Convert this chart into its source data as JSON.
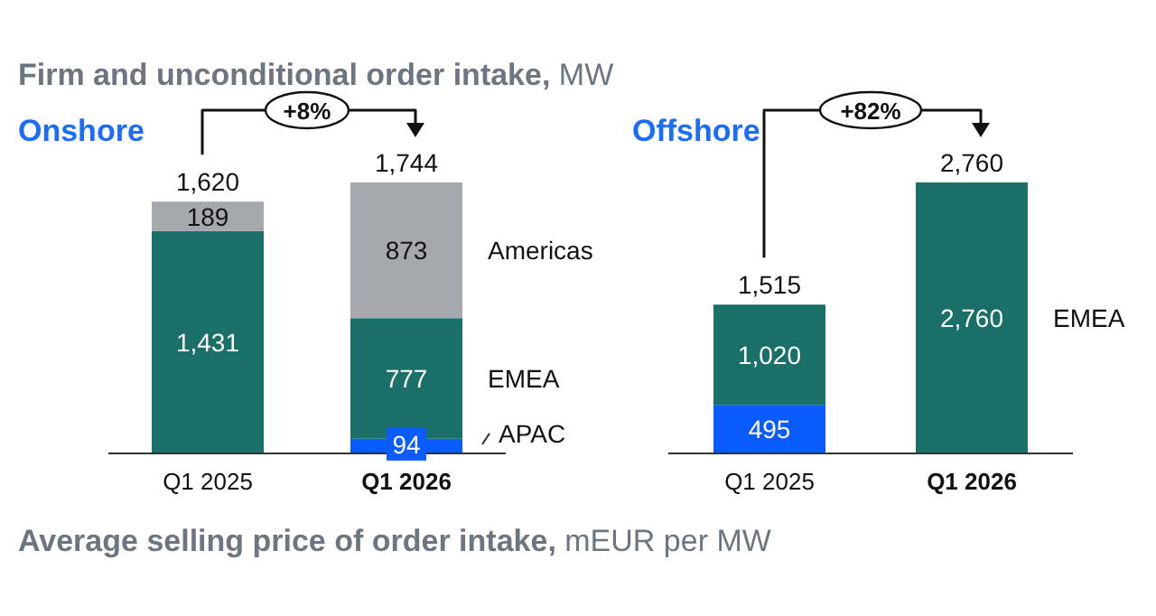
{
  "chart_data": [
    {
      "type": "bar",
      "title": "Onshore",
      "stacked": true,
      "categories": [
        "Q1 2025",
        "Q1 2026"
      ],
      "series": [
        {
          "name": "APAC",
          "color": "#0a5cff",
          "values": [
            null,
            94
          ],
          "value_labels": [
            null,
            "94"
          ]
        },
        {
          "name": "EMEA",
          "color": "#1a7068",
          "values": [
            1431,
            777
          ],
          "value_labels": [
            "1,431",
            "777"
          ]
        },
        {
          "name": "Americas",
          "color": "#a5a9ae",
          "values": [
            189,
            873
          ],
          "value_labels": [
            "189",
            "873"
          ]
        }
      ],
      "totals": [
        "1,620",
        "1,744"
      ],
      "annotations": [
        "Firm and unconditional order intake, MW",
        "+8%",
        "Average selling price of order intake, mEUR per MW"
      ]
    },
    {
      "type": "bar",
      "title": "Offshore",
      "stacked": true,
      "categories": [
        "Q1 2025",
        "Q1 2026"
      ],
      "series": [
        {
          "color": "#0a5cff",
          "values": [
            495,
            null
          ],
          "value_labels": [
            "495",
            null
          ]
        },
        {
          "name": "EMEA",
          "color": "#1a7068",
          "values": [
            1020,
            2760
          ],
          "value_labels": [
            "1,020",
            "2,760"
          ]
        }
      ],
      "totals": [
        "1,515",
        "2,760"
      ],
      "annotations": [
        "+82%"
      ]
    }
  ]
}
